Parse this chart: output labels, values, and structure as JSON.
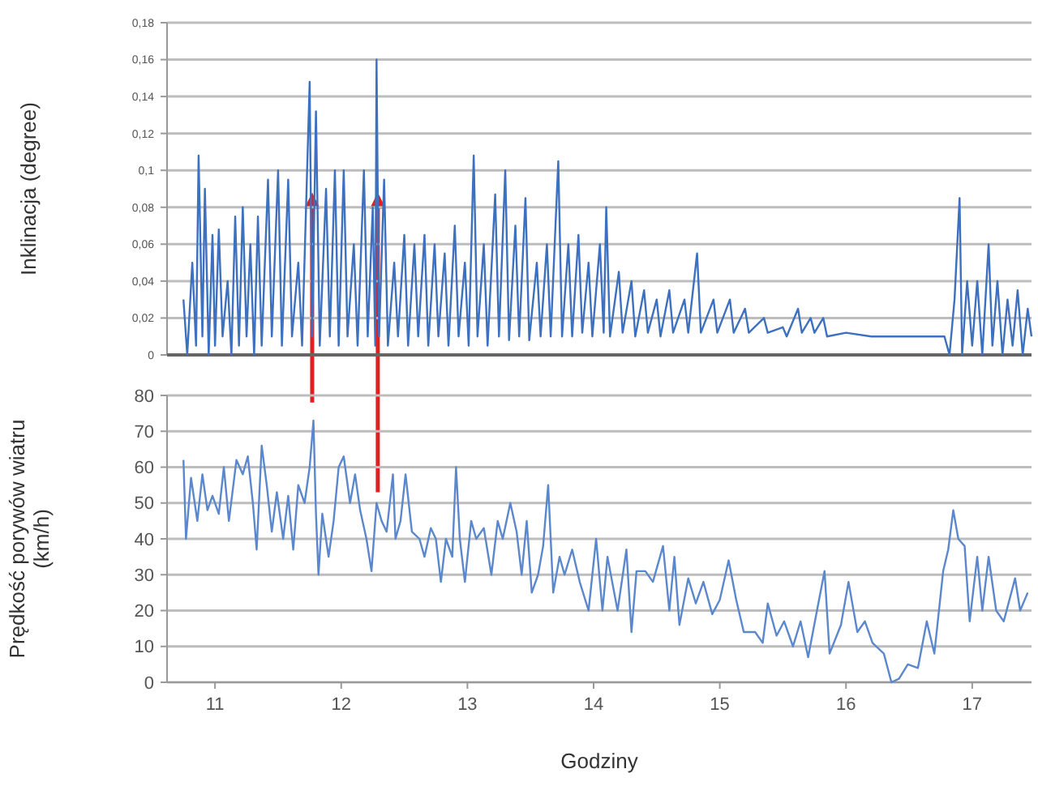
{
  "chart_data": [
    {
      "type": "line",
      "ylabel": "Inklinacja (degree)",
      "xlim": [
        10.62,
        17.47
      ],
      "ylim": [
        0,
        0.18
      ],
      "tick_labels": "y",
      "grid": "y",
      "marker": "none",
      "yticks": [
        0,
        {
          "value": 0.02,
          "label": "0,02"
        },
        {
          "value": 0.04,
          "label": "0,04"
        },
        {
          "value": 0.06,
          "label": "0,06"
        },
        {
          "value": 0.08,
          "label": "0,08"
        },
        {
          "value": 0.1,
          "label": "0,1"
        },
        {
          "value": 0.12,
          "label": "0,12"
        },
        {
          "value": 0.14,
          "label": "0,14"
        },
        {
          "value": 0.16,
          "label": "0,16"
        },
        {
          "value": 0.18,
          "label": "0,18"
        }
      ],
      "xticks": [
        11,
        12,
        13,
        14,
        15,
        16,
        17
      ],
      "series": [
        {
          "color": "#3d70bf",
          "x": [
            10.75,
            10.78,
            10.82,
            10.85,
            10.87,
            10.9,
            10.92,
            10.95,
            10.98,
            11.0,
            11.03,
            11.06,
            11.1,
            11.13,
            11.16,
            11.19,
            11.22,
            11.25,
            11.28,
            11.31,
            11.34,
            11.37,
            11.42,
            11.45,
            11.5,
            11.53,
            11.58,
            11.61,
            11.66,
            11.69,
            11.75,
            11.77,
            11.8,
            11.83,
            11.88,
            11.91,
            11.95,
            11.98,
            12.02,
            12.05,
            12.1,
            12.13,
            12.18,
            12.21,
            12.25,
            12.27,
            12.28,
            12.3,
            12.34,
            12.37,
            12.42,
            12.45,
            12.5,
            12.53,
            12.58,
            12.61,
            12.66,
            12.69,
            12.74,
            12.77,
            12.82,
            12.85,
            12.9,
            12.93,
            12.98,
            13.01,
            13.05,
            13.08,
            13.13,
            13.16,
            13.22,
            13.25,
            13.3,
            13.33,
            13.38,
            13.41,
            13.46,
            13.49,
            13.55,
            13.58,
            13.63,
            13.66,
            13.72,
            13.75,
            13.8,
            13.83,
            13.88,
            13.91,
            13.96,
            13.99,
            14.05,
            14.08,
            14.1,
            14.13,
            14.2,
            14.23,
            14.3,
            14.33,
            14.4,
            14.43,
            14.5,
            14.53,
            14.6,
            14.63,
            14.72,
            14.75,
            14.82,
            14.85,
            14.95,
            14.98,
            15.08,
            15.11,
            15.2,
            15.23,
            15.35,
            15.38,
            15.5,
            15.53,
            15.62,
            15.65,
            15.72,
            15.75,
            15.82,
            15.85,
            16.0,
            16.2,
            16.4,
            16.6,
            16.78,
            16.82,
            16.86,
            16.9,
            16.92,
            16.96,
            17.0,
            17.04,
            17.08,
            17.13,
            17.16,
            17.2,
            17.24,
            17.28,
            17.32,
            17.36,
            17.4,
            17.44,
            17.47
          ],
          "values": [
            0.03,
            0.0,
            0.05,
            0.005,
            0.108,
            0.01,
            0.09,
            0.0,
            0.065,
            0.005,
            0.068,
            0.01,
            0.04,
            0.0,
            0.075,
            0.005,
            0.08,
            0.01,
            0.06,
            0.0,
            0.075,
            0.005,
            0.095,
            0.01,
            0.1,
            0.005,
            0.095,
            0.01,
            0.05,
            0.005,
            0.148,
            0.01,
            0.132,
            0.005,
            0.09,
            0.01,
            0.1,
            0.005,
            0.1,
            0.01,
            0.06,
            0.005,
            0.1,
            0.01,
            0.08,
            0.005,
            0.16,
            0.01,
            0.095,
            0.005,
            0.05,
            0.01,
            0.065,
            0.005,
            0.06,
            0.01,
            0.065,
            0.005,
            0.06,
            0.01,
            0.055,
            0.005,
            0.07,
            0.01,
            0.05,
            0.005,
            0.108,
            0.01,
            0.06,
            0.005,
            0.087,
            0.01,
            0.1,
            0.008,
            0.07,
            0.01,
            0.085,
            0.008,
            0.05,
            0.01,
            0.06,
            0.01,
            0.105,
            0.01,
            0.06,
            0.01,
            0.065,
            0.012,
            0.05,
            0.01,
            0.06,
            0.012,
            0.08,
            0.01,
            0.045,
            0.012,
            0.04,
            0.01,
            0.035,
            0.012,
            0.03,
            0.01,
            0.035,
            0.012,
            0.03,
            0.012,
            0.055,
            0.012,
            0.03,
            0.012,
            0.03,
            0.012,
            0.025,
            0.012,
            0.02,
            0.012,
            0.015,
            0.01,
            0.025,
            0.012,
            0.02,
            0.012,
            0.02,
            0.01,
            0.012,
            0.01,
            0.01,
            0.01,
            0.01,
            0.0,
            0.03,
            0.085,
            0.0,
            0.04,
            0.005,
            0.04,
            0.0,
            0.06,
            0.005,
            0.04,
            0.0,
            0.03,
            0.005,
            0.035,
            0.0,
            0.025,
            0.01
          ]
        }
      ]
    },
    {
      "type": "line",
      "ylabel": "Prędkość porywów wiatru (km/h)",
      "xlabel": "Godziny",
      "xlim": [
        10.62,
        17.47
      ],
      "ylim": [
        0,
        80
      ],
      "yticks": [
        0,
        10,
        20,
        30,
        40,
        50,
        60,
        70,
        80
      ],
      "xticks": [
        11,
        12,
        13,
        14,
        15,
        16,
        17
      ],
      "grid": "y",
      "marker": "none",
      "series": [
        {
          "color": "#5b88cc",
          "x": [
            10.75,
            10.77,
            10.81,
            10.86,
            10.9,
            10.94,
            10.98,
            11.03,
            11.07,
            11.11,
            11.17,
            11.22,
            11.26,
            11.3,
            11.33,
            11.37,
            11.41,
            11.45,
            11.49,
            11.54,
            11.58,
            11.62,
            11.66,
            11.71,
            11.75,
            11.78,
            11.8,
            11.82,
            11.85,
            11.9,
            11.94,
            11.98,
            12.02,
            12.07,
            12.11,
            12.15,
            12.2,
            12.24,
            12.28,
            12.32,
            12.36,
            12.41,
            12.43,
            12.47,
            12.51,
            12.56,
            12.62,
            12.66,
            12.71,
            12.75,
            12.79,
            12.83,
            12.88,
            12.91,
            12.94,
            12.98,
            13.03,
            13.07,
            13.13,
            13.19,
            13.24,
            13.28,
            13.34,
            13.39,
            13.43,
            13.47,
            13.51,
            13.56,
            13.6,
            13.64,
            13.68,
            13.73,
            13.77,
            13.83,
            13.89,
            13.96,
            14.02,
            14.07,
            14.11,
            14.19,
            14.26,
            14.3,
            14.34,
            14.41,
            14.47,
            14.55,
            14.6,
            14.64,
            14.68,
            14.75,
            14.81,
            14.87,
            14.94,
            15.0,
            15.07,
            15.13,
            15.19,
            15.28,
            15.34,
            15.38,
            15.45,
            15.51,
            15.58,
            15.64,
            15.7,
            15.77,
            15.83,
            15.87,
            15.96,
            16.02,
            16.09,
            16.15,
            16.21,
            16.3,
            16.36,
            16.42,
            16.49,
            16.57,
            16.64,
            16.7,
            16.77,
            16.81,
            16.85,
            16.89,
            16.94,
            16.98,
            17.04,
            17.08,
            17.13,
            17.19,
            17.25,
            17.34,
            17.38,
            17.44
          ],
          "values": [
            62,
            40,
            57,
            45,
            58,
            48,
            52,
            47,
            60,
            45,
            62,
            58,
            63,
            50,
            37,
            66,
            55,
            42,
            53,
            40,
            52,
            37,
            55,
            50,
            60,
            73,
            47,
            30,
            47,
            35,
            45,
            60,
            63,
            50,
            58,
            48,
            40,
            31,
            50,
            45,
            42,
            58,
            40,
            45,
            58,
            42,
            40,
            35,
            43,
            40,
            28,
            40,
            35,
            60,
            40,
            28,
            45,
            40,
            43,
            30,
            45,
            40,
            50,
            42,
            30,
            45,
            25,
            30,
            38,
            55,
            25,
            35,
            30,
            37,
            28,
            20,
            40,
            20,
            35,
            20,
            37,
            14,
            31,
            31,
            28,
            38,
            20,
            35,
            16,
            29,
            22,
            28,
            19,
            23,
            34,
            23,
            14,
            14,
            11,
            22,
            13,
            17,
            10,
            17,
            7,
            20,
            31,
            8,
            16,
            28,
            14,
            17,
            11,
            8,
            0,
            1,
            5,
            4,
            17,
            8,
            31,
            37,
            48,
            40,
            38,
            17,
            35,
            20,
            35,
            20,
            17,
            29,
            20,
            25
          ]
        }
      ]
    }
  ]
}
